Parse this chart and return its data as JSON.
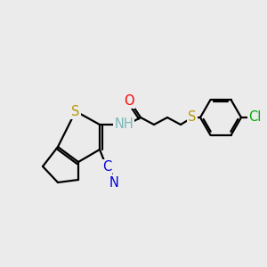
{
  "bg_color": "#ebebeb",
  "atom_colors": {
    "S": "#b8960c",
    "O": "#ff0000",
    "N": "#0000cc",
    "Cl": "#00aa00",
    "H": "#7ab8b8",
    "CN_blue": "#0000dd"
  },
  "line_color": "#000000",
  "line_width": 1.6,
  "font_size_atom": 10.5
}
